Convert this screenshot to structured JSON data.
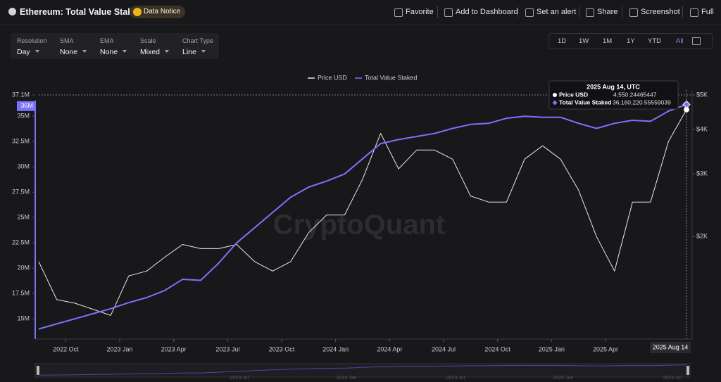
{
  "header": {
    "title": "Ethereum: Total Value Staked",
    "notice": "Data Notice",
    "actions": [
      "Favorite",
      "Add to Dashboard",
      "Set an alert",
      "Share",
      "Screenshot",
      "Full"
    ]
  },
  "controls": [
    {
      "label": "Resolution",
      "value": "Day"
    },
    {
      "label": "SMA",
      "value": "None"
    },
    {
      "label": "EMA",
      "value": "None"
    },
    {
      "label": "Scale",
      "value": "Mixed"
    },
    {
      "label": "Chart Type",
      "value": "Line"
    }
  ],
  "ranges": {
    "options": [
      "1D",
      "1W",
      "1M",
      "1Y",
      "YTD",
      "All"
    ],
    "active": "All"
  },
  "watermark": "CryptoQuant",
  "chart_data": {
    "type": "line",
    "x": [
      "2022 Aug",
      "2022 Sep",
      "2022 Oct",
      "2022 Nov",
      "2022 Dec",
      "2023 Jan",
      "2023 Feb",
      "2023 Mar",
      "2023 Apr",
      "2023 May",
      "2023 Jun",
      "2023 Jul",
      "2023 Aug",
      "2023 Sep",
      "2023 Oct",
      "2023 Nov",
      "2023 Dec",
      "2024 Jan",
      "2024 Feb",
      "2024 Mar",
      "2024 Apr",
      "2024 May",
      "2024 Jun",
      "2024 Jul",
      "2024 Aug",
      "2024 Sep",
      "2024 Oct",
      "2024 Nov",
      "2024 Dec",
      "2025 Jan",
      "2025 Feb",
      "2025 Mar",
      "2025 Apr",
      "2025 May",
      "2025 Jun",
      "2025 Jul",
      "2025 Aug"
    ],
    "xticks": [
      "2022 Oct",
      "2023 Jan",
      "2023 Apr",
      "2023 Jul",
      "2023 Oct",
      "2024 Jan",
      "2024 Apr",
      "2024 Jul",
      "2024 Oct",
      "2025 Jan",
      "2025 Apr"
    ],
    "series": [
      {
        "name": "Price USD",
        "color": "#e8e8ec",
        "axis": "y2",
        "values": [
          1700,
          1330,
          1300,
          1250,
          1200,
          1550,
          1600,
          1750,
          1900,
          1850,
          1850,
          1900,
          1700,
          1600,
          1700,
          2050,
          2300,
          2300,
          2900,
          3900,
          3100,
          3500,
          3500,
          3300,
          2600,
          2500,
          2500,
          3300,
          3600,
          3300,
          2700,
          2000,
          1600,
          2500,
          2500,
          3700,
          4550.24465447
        ]
      },
      {
        "name": "Total Value Staked",
        "color": "#7a72ff",
        "values": [
          14000000,
          14500000,
          15000000,
          15500000,
          16000000,
          16600000,
          17100000,
          17800000,
          18900000,
          18800000,
          20500000,
          22500000,
          24000000,
          25500000,
          27000000,
          28000000,
          28600000,
          29300000,
          30800000,
          32300000,
          32700000,
          33000000,
          33300000,
          33800000,
          34200000,
          34300000,
          34800000,
          35000000,
          34900000,
          34900000,
          34300000,
          33800000,
          34300000,
          34600000,
          34500000,
          35500000,
          36160220.55559039
        ]
      }
    ],
    "ylim": [
      13000000,
      37100000
    ],
    "yticks": [
      {
        "value": 15000000,
        "label": "15M"
      },
      {
        "value": 17500000,
        "label": "17.5M"
      },
      {
        "value": 20000000,
        "label": "20M"
      },
      {
        "value": 22500000,
        "label": "22.5M"
      },
      {
        "value": 25000000,
        "label": "25M"
      },
      {
        "value": 27500000,
        "label": "27.5M"
      },
      {
        "value": 30000000,
        "label": "30M"
      },
      {
        "value": 32500000,
        "label": "32.5M"
      },
      {
        "value": 35000000,
        "label": "35M"
      },
      {
        "value": 37100000,
        "label": "37.1M"
      }
    ],
    "y2lim": [
      1030,
      5000
    ],
    "y2log": true,
    "y2ticks": [
      {
        "value": 2000,
        "label": "$2K"
      },
      {
        "value": 3000,
        "label": "$3K"
      },
      {
        "value": 4000,
        "label": "$4K"
      },
      {
        "value": 5000,
        "label": "$5K"
      }
    ],
    "crosshair": {
      "x_label": "2025 Aug 14",
      "y_label": {
        "value": 36000000,
        "label": "36M"
      }
    },
    "tooltip": {
      "title": "2025 Aug 14, UTC",
      "items": [
        {
          "value": 4550.24465447,
          "label": "4,550.24465447"
        },
        {
          "value": 36160220.55559039,
          "label": "36,160,220.55559039"
        }
      ]
    },
    "navigator_labels": [
      "2023 Jul",
      "2024 Jan",
      "2024 Jul",
      "2025 Jan",
      "2025 Jul"
    ]
  }
}
